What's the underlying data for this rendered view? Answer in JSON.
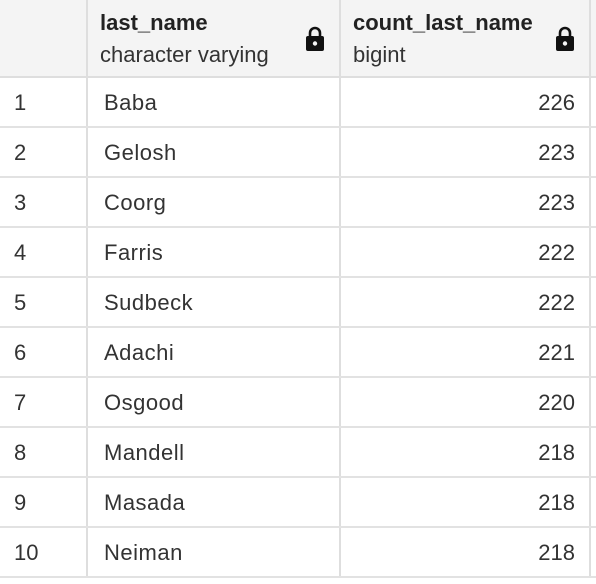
{
  "columns": [
    {
      "name": "last_name",
      "type": "character varying",
      "locked": true
    },
    {
      "name": "count_last_name",
      "type": "bigint",
      "locked": true
    }
  ],
  "rows": [
    {
      "num": "1",
      "last_name": "Baba",
      "count": "226"
    },
    {
      "num": "2",
      "last_name": "Gelosh",
      "count": "223"
    },
    {
      "num": "3",
      "last_name": "Coorg",
      "count": "223"
    },
    {
      "num": "4",
      "last_name": "Farris",
      "count": "222"
    },
    {
      "num": "5",
      "last_name": "Sudbeck",
      "count": "222"
    },
    {
      "num": "6",
      "last_name": "Adachi",
      "count": "221"
    },
    {
      "num": "7",
      "last_name": "Osgood",
      "count": "220"
    },
    {
      "num": "8",
      "last_name": "Mandell",
      "count": "218"
    },
    {
      "num": "9",
      "last_name": "Masada",
      "count": "218"
    },
    {
      "num": "10",
      "last_name": "Neiman",
      "count": "218"
    }
  ],
  "icons": {
    "column_lock": "lock-icon"
  }
}
